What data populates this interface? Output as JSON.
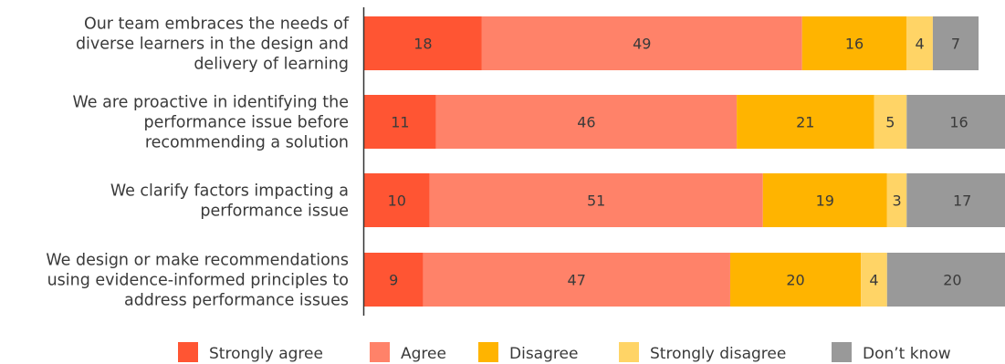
{
  "chart_data": {
    "type": "bar",
    "orientation": "horizontal",
    "stacked": true,
    "categories": [
      [
        "Our team embraces the needs of",
        "diverse learners in the design and",
        "delivery of learning"
      ],
      [
        "We are proactive in identifying the",
        "performance issue before",
        "recommending a solution"
      ],
      [
        "We clarify factors impacting a",
        "performance issue"
      ],
      [
        "We design or make recommendations",
        "using evidence-informed principles to",
        "address performance issues"
      ]
    ],
    "series": [
      {
        "name": "Strongly agree",
        "color": "#ff5533",
        "values": [
          18,
          11,
          10,
          9
        ]
      },
      {
        "name": "Agree",
        "color": "#ff8269",
        "values": [
          49,
          46,
          51,
          47
        ]
      },
      {
        "name": "Disagree",
        "color": "#ffb400",
        "values": [
          16,
          21,
          19,
          20
        ]
      },
      {
        "name": "Strongly disagree",
        "color": "#ffd466",
        "values": [
          4,
          5,
          3,
          4
        ]
      },
      {
        "name": "Don’t know",
        "color": "#999999",
        "values": [
          7,
          16,
          17,
          20
        ]
      }
    ],
    "xlim": [
      0,
      100
    ],
    "legend": "bottom",
    "grid": false
  }
}
